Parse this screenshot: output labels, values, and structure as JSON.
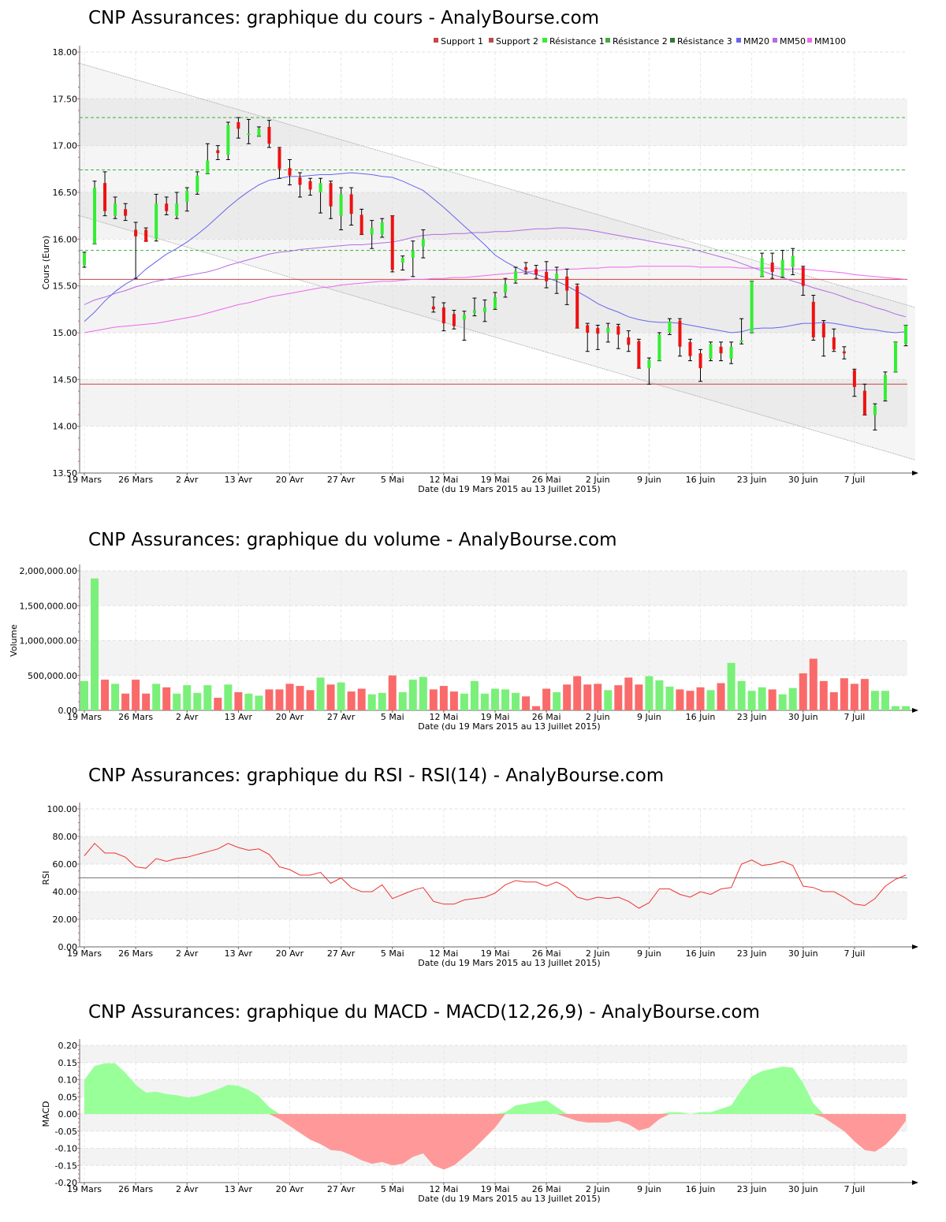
{
  "colors": {
    "up": "#33ee33",
    "down": "#ee1111",
    "mm20": "#6666ee",
    "mm50": "#b36be6",
    "mm100": "#ee66ee",
    "support": "#cc4444",
    "resistance": "#44aa44",
    "vol_up": "#7af07a",
    "vol_down": "#fa6a6a",
    "rsi": "#ee3333",
    "macd_pos": "#99ff99",
    "macd_neg": "#ff9999"
  },
  "xaxis": {
    "title": "Date (du 19 Mars 2015 au 13 Juillet 2015)",
    "ticks": [
      "19 Mars",
      "26 Mars",
      "2 Avr",
      "13 Avr",
      "20 Avr",
      "27 Avr",
      "5 Mai",
      "12 Mai",
      "19 Mai",
      "26 Mai",
      "2 Juin",
      "9 Juin",
      "16 Juin",
      "23 Juin",
      "30 Juin",
      "7 Juil"
    ],
    "tick_index": [
      0,
      5,
      10,
      15,
      20,
      25,
      30,
      35,
      40,
      45,
      50,
      55,
      60,
      65,
      70,
      75
    ]
  },
  "chart_data": [
    {
      "type": "candlestick",
      "title": "CNP Assurances: graphique du cours - AnalyBourse.com",
      "ylabel": "Cours (Euro)",
      "ylim": [
        13.5,
        18.0
      ],
      "yticks": [
        "13.50",
        "14.00",
        "14.50",
        "15.00",
        "15.50",
        "16.00",
        "16.50",
        "17.00",
        "17.50",
        "18.00"
      ],
      "legend": [
        "Support 1",
        "Support 2",
        "Résistance 1",
        "Résistance 2",
        "Résistance 3",
        "MM20",
        "MM50",
        "MM100"
      ],
      "support": [
        15.57,
        14.45
      ],
      "resistance": [
        15.88,
        16.74,
        17.3
      ],
      "candles": [
        [
          15.72,
          15.86,
          15.7,
          15.85
        ],
        [
          15.95,
          16.62,
          15.95,
          16.55
        ],
        [
          16.6,
          16.72,
          16.25,
          16.3
        ],
        [
          16.25,
          16.45,
          16.22,
          16.38
        ],
        [
          16.32,
          16.38,
          16.2,
          16.25
        ],
        [
          16.1,
          16.18,
          15.58,
          16.03
        ],
        [
          16.1,
          16.12,
          15.98,
          15.97
        ],
        [
          16.0,
          16.48,
          15.98,
          16.38
        ],
        [
          16.38,
          16.45,
          16.26,
          16.3
        ],
        [
          16.25,
          16.5,
          16.22,
          16.38
        ],
        [
          16.4,
          16.55,
          16.3,
          16.52
        ],
        [
          16.5,
          16.72,
          16.48,
          16.68
        ],
        [
          16.7,
          17.02,
          16.7,
          16.84
        ],
        [
          16.95,
          17.0,
          16.85,
          16.92
        ],
        [
          16.9,
          17.25,
          16.85,
          17.22
        ],
        [
          17.25,
          17.3,
          17.08,
          17.18
        ],
        [
          17.12,
          17.28,
          17.02,
          17.13
        ],
        [
          17.1,
          17.2,
          17.1,
          17.18
        ],
        [
          17.2,
          17.27,
          16.98,
          17.02
        ],
        [
          16.97,
          16.98,
          16.65,
          16.75
        ],
        [
          16.76,
          16.85,
          16.58,
          16.68
        ],
        [
          16.66,
          16.71,
          16.45,
          16.58
        ],
        [
          16.62,
          16.65,
          16.47,
          16.53
        ],
        [
          16.5,
          16.65,
          16.28,
          16.6
        ],
        [
          16.6,
          16.62,
          16.22,
          16.35
        ],
        [
          16.25,
          16.55,
          16.1,
          16.48
        ],
        [
          16.48,
          16.55,
          16.15,
          16.27
        ],
        [
          16.26,
          16.32,
          16.05,
          16.05
        ],
        [
          16.05,
          16.2,
          15.9,
          16.12
        ],
        [
          16.05,
          16.22,
          16.02,
          16.18
        ],
        [
          16.25,
          16.25,
          15.65,
          15.67
        ],
        [
          15.75,
          15.82,
          15.67,
          15.8
        ],
        [
          15.8,
          15.98,
          15.6,
          15.88
        ],
        [
          15.92,
          16.1,
          15.8,
          16.0
        ],
        [
          15.28,
          15.38,
          15.22,
          15.25
        ],
        [
          15.27,
          15.32,
          15.02,
          15.1
        ],
        [
          15.2,
          15.24,
          15.04,
          15.07
        ],
        [
          15.14,
          15.23,
          14.92,
          15.19
        ],
        [
          15.21,
          15.37,
          15.18,
          15.24
        ],
        [
          15.22,
          15.35,
          15.12,
          15.27
        ],
        [
          15.26,
          15.43,
          15.25,
          15.38
        ],
        [
          15.43,
          15.58,
          15.38,
          15.52
        ],
        [
          15.55,
          15.7,
          15.53,
          15.66
        ],
        [
          15.7,
          15.75,
          15.63,
          15.67
        ],
        [
          15.68,
          15.72,
          15.58,
          15.62
        ],
        [
          15.65,
          15.76,
          15.48,
          15.55
        ],
        [
          15.57,
          15.7,
          15.42,
          15.63
        ],
        [
          15.6,
          15.68,
          15.3,
          15.45
        ],
        [
          15.5,
          15.52,
          15.05,
          15.05
        ],
        [
          15.08,
          15.1,
          14.8,
          15.0
        ],
        [
          15.05,
          15.08,
          14.82,
          14.99
        ],
        [
          15.0,
          15.1,
          14.9,
          15.05
        ],
        [
          15.07,
          15.09,
          14.83,
          14.98
        ],
        [
          14.95,
          15.02,
          14.8,
          14.87
        ],
        [
          14.91,
          14.93,
          14.62,
          14.62
        ],
        [
          14.62,
          14.73,
          14.45,
          14.71
        ],
        [
          14.7,
          15.0,
          14.7,
          14.98
        ],
        [
          15.0,
          15.15,
          14.98,
          15.12
        ],
        [
          15.13,
          15.15,
          14.75,
          14.85
        ],
        [
          14.9,
          14.93,
          14.7,
          14.75
        ],
        [
          14.78,
          14.82,
          14.48,
          14.62
        ],
        [
          14.72,
          14.9,
          14.7,
          14.88
        ],
        [
          14.85,
          14.9,
          14.7,
          14.78
        ],
        [
          14.72,
          14.9,
          14.67,
          14.85
        ],
        [
          14.9,
          15.15,
          14.88,
          14.92
        ],
        [
          15.0,
          15.55,
          15.0,
          15.55
        ],
        [
          15.6,
          15.85,
          15.6,
          15.8
        ],
        [
          15.75,
          15.85,
          15.58,
          15.65
        ],
        [
          15.6,
          15.88,
          15.59,
          15.78
        ],
        [
          15.7,
          15.9,
          15.62,
          15.82
        ],
        [
          15.7,
          15.71,
          15.4,
          15.5
        ],
        [
          15.33,
          15.4,
          14.92,
          14.95
        ],
        [
          15.1,
          15.13,
          14.75,
          14.95
        ],
        [
          14.95,
          15.04,
          14.8,
          14.82
        ],
        [
          14.8,
          14.85,
          14.72,
          14.78
        ],
        [
          14.6,
          14.61,
          14.32,
          14.42
        ],
        [
          14.38,
          14.45,
          14.12,
          14.12
        ],
        [
          14.12,
          14.24,
          13.96,
          14.22
        ],
        [
          14.28,
          14.58,
          14.27,
          14.55
        ],
        [
          14.58,
          14.9,
          14.58,
          14.9
        ],
        [
          14.88,
          15.08,
          14.86,
          15.08
        ]
      ],
      "mm20": [
        15.12,
        15.22,
        15.34,
        15.44,
        15.52,
        15.58,
        15.68,
        15.76,
        15.84,
        15.9,
        15.97,
        16.05,
        16.14,
        16.24,
        16.34,
        16.43,
        16.51,
        16.58,
        16.63,
        16.65,
        16.67,
        16.67,
        16.68,
        16.69,
        16.69,
        16.7,
        16.71,
        16.7,
        16.69,
        16.67,
        16.66,
        16.62,
        16.57,
        16.52,
        16.43,
        16.34,
        16.24,
        16.14,
        16.04,
        15.94,
        15.83,
        15.76,
        15.7,
        15.65,
        15.62,
        15.59,
        15.55,
        15.5,
        15.44,
        15.38,
        15.31,
        15.26,
        15.22,
        15.17,
        15.14,
        15.12,
        15.11,
        15.11,
        15.1,
        15.08,
        15.06,
        15.04,
        15.02,
        15.0,
        15.01,
        15.04,
        15.05,
        15.05,
        15.06,
        15.08,
        15.1,
        15.1,
        15.11,
        15.1,
        15.08,
        15.06,
        15.04,
        15.03,
        15.01,
        15.0,
        15.01
      ],
      "mm50": [
        15.3,
        15.35,
        15.38,
        15.42,
        15.45,
        15.49,
        15.52,
        15.55,
        15.57,
        15.59,
        15.61,
        15.63,
        15.65,
        15.68,
        15.72,
        15.75,
        15.78,
        15.81,
        15.84,
        15.86,
        15.87,
        15.89,
        15.9,
        15.91,
        15.92,
        15.93,
        15.94,
        15.94,
        15.95,
        15.96,
        15.97,
        15.99,
        16.02,
        16.04,
        16.05,
        16.05,
        16.06,
        16.06,
        16.07,
        16.07,
        16.08,
        16.08,
        16.09,
        16.1,
        16.11,
        16.11,
        16.12,
        16.12,
        16.11,
        16.1,
        16.08,
        16.06,
        16.04,
        16.02,
        16.0,
        15.98,
        15.96,
        15.94,
        15.92,
        15.9,
        15.87,
        15.84,
        15.81,
        15.78,
        15.74,
        15.7,
        15.66,
        15.62,
        15.59,
        15.55,
        15.52,
        15.48,
        15.45,
        15.42,
        15.38,
        15.34,
        15.31,
        15.27,
        15.24,
        15.2,
        15.17
      ],
      "mm100": [
        15.0,
        15.02,
        15.04,
        15.06,
        15.07,
        15.08,
        15.09,
        15.1,
        15.12,
        15.14,
        15.16,
        15.18,
        15.21,
        15.24,
        15.27,
        15.3,
        15.32,
        15.35,
        15.38,
        15.4,
        15.42,
        15.44,
        15.46,
        15.48,
        15.49,
        15.51,
        15.52,
        15.53,
        15.54,
        15.55,
        15.55,
        15.56,
        15.57,
        15.57,
        15.58,
        15.58,
        15.59,
        15.59,
        15.6,
        15.61,
        15.62,
        15.63,
        15.64,
        15.65,
        15.66,
        15.67,
        15.67,
        15.68,
        15.68,
        15.69,
        15.69,
        15.7,
        15.7,
        15.7,
        15.71,
        15.71,
        15.71,
        15.71,
        15.71,
        15.71,
        15.7,
        15.7,
        15.7,
        15.7,
        15.69,
        15.69,
        15.69,
        15.69,
        15.68,
        15.68,
        15.68,
        15.67,
        15.66,
        15.65,
        15.64,
        15.62,
        15.61,
        15.6,
        15.59,
        15.58,
        15.57
      ],
      "channel_upper": [
        17.88,
        15.27
      ],
      "channel_lower": [
        16.25,
        13.64
      ]
    },
    {
      "type": "bar",
      "title": "CNP Assurances: graphique du volume - AnalyBourse.com",
      "ylabel": "Volume",
      "ylim": [
        0,
        2000000
      ],
      "yticks": [
        "0.00",
        "500,000.00",
        "1,000,000.00",
        "1,500,000.00",
        "2,000,000.00"
      ],
      "values": [
        420000,
        1890000,
        440000,
        380000,
        240000,
        440000,
        240000,
        380000,
        330000,
        240000,
        360000,
        250000,
        360000,
        180000,
        370000,
        260000,
        240000,
        210000,
        300000,
        300000,
        380000,
        350000,
        290000,
        470000,
        370000,
        400000,
        270000,
        310000,
        230000,
        250000,
        500000,
        260000,
        440000,
        480000,
        300000,
        350000,
        270000,
        240000,
        420000,
        240000,
        310000,
        300000,
        250000,
        200000,
        60000,
        310000,
        260000,
        370000,
        490000,
        370000,
        380000,
        290000,
        360000,
        470000,
        370000,
        490000,
        430000,
        340000,
        300000,
        280000,
        330000,
        290000,
        390000,
        680000,
        420000,
        280000,
        330000,
        300000,
        230000,
        320000,
        530000,
        740000,
        420000,
        260000,
        460000,
        380000,
        450000,
        280000,
        280000,
        60000,
        60000
      ]
    },
    {
      "type": "line",
      "title": "CNP Assurances: graphique du RSI - RSI(14) - AnalyBourse.com",
      "ylabel": "RSI",
      "ylim": [
        0,
        100
      ],
      "yticks": [
        "0.00",
        "20.00",
        "40.00",
        "60.00",
        "80.00",
        "100.00"
      ],
      "threshold": 50,
      "values": [
        66,
        75,
        68,
        68,
        65,
        58,
        57,
        64,
        62,
        64,
        65,
        67,
        69,
        71,
        75,
        72,
        70,
        71,
        67,
        58,
        56,
        52,
        52,
        54,
        46,
        50,
        43,
        40,
        40,
        45,
        35,
        38,
        41,
        43,
        33,
        31,
        31,
        34,
        35,
        36,
        39,
        45,
        48,
        47,
        47,
        44,
        47,
        43,
        36,
        34,
        36,
        35,
        36,
        33,
        28,
        32,
        42,
        42,
        38,
        36,
        40,
        38,
        42,
        43,
        60,
        63,
        59,
        60,
        62,
        59,
        44,
        43,
        40,
        40,
        36,
        31,
        30,
        35,
        44,
        49,
        52
      ]
    },
    {
      "type": "area",
      "title": "CNP Assurances: graphique du MACD - MACD(12,26,9) - AnalyBourse.com",
      "ylabel": "MACD",
      "ylim": [
        -0.2,
        0.2
      ],
      "yticks": [
        "-0.20",
        "-0.15",
        "-0.10",
        "-0.05",
        "0.00",
        "0.05",
        "0.10",
        "0.15",
        "0.20"
      ],
      "values": [
        0.1,
        0.14,
        0.148,
        0.148,
        0.12,
        0.085,
        0.062,
        0.065,
        0.058,
        0.055,
        0.048,
        0.052,
        0.062,
        0.072,
        0.085,
        0.082,
        0.07,
        0.052,
        0.02,
        -0.015,
        -0.035,
        -0.055,
        -0.075,
        -0.088,
        -0.105,
        -0.108,
        -0.12,
        -0.135,
        -0.145,
        -0.14,
        -0.15,
        -0.145,
        -0.125,
        -0.115,
        -0.15,
        -0.162,
        -0.15,
        -0.125,
        -0.1,
        -0.07,
        -0.04,
        0.005,
        0.025,
        0.03,
        0.035,
        0.04,
        0.02,
        -0.01,
        -0.02,
        -0.025,
        -0.025,
        -0.025,
        -0.02,
        -0.03,
        -0.048,
        -0.04,
        -0.015,
        0.005,
        0.005,
        0.0,
        0.005,
        0.005,
        0.015,
        0.025,
        0.07,
        0.11,
        0.125,
        0.132,
        0.138,
        0.135,
        0.09,
        0.03,
        -0.01,
        -0.03,
        -0.05,
        -0.08,
        -0.105,
        -0.11,
        -0.09,
        -0.06,
        -0.02
      ]
    }
  ]
}
